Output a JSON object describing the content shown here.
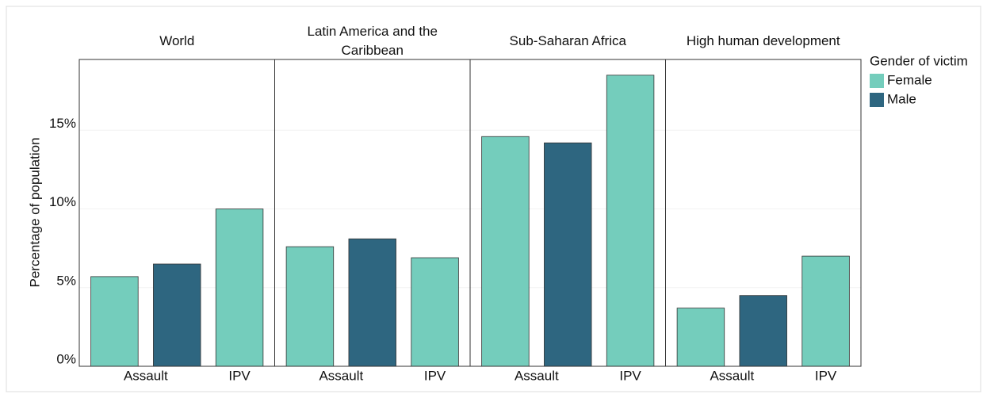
{
  "chart_data": {
    "type": "bar",
    "y_label": "Percentage of population",
    "legend_title": "Gender of victim",
    "series": [
      {
        "name": "Female",
        "color": "#74cdbc"
      },
      {
        "name": "Male",
        "color": "#2e6680"
      }
    ],
    "ylim": [
      0,
      19.5
    ],
    "yticks": [
      {
        "value": 0,
        "label": "0%"
      },
      {
        "value": 5,
        "label": "5%"
      },
      {
        "value": 10,
        "label": "10%"
      },
      {
        "value": 15,
        "label": "15%"
      }
    ],
    "grid": true,
    "panels": [
      {
        "title": "World",
        "categories": [
          "Assault",
          "IPV"
        ],
        "values": [
          [
            5.7,
            10.0
          ],
          [
            6.5,
            null
          ]
        ]
      },
      {
        "title": "Latin America and the Caribbean",
        "categories": [
          "Assault",
          "IPV"
        ],
        "values": [
          [
            7.6,
            6.9
          ],
          [
            8.1,
            null
          ]
        ]
      },
      {
        "title": "Sub-Saharan Africa",
        "categories": [
          "Assault",
          "IPV"
        ],
        "values": [
          [
            14.6,
            18.5
          ],
          [
            14.2,
            null
          ]
        ]
      },
      {
        "title": "High human development",
        "categories": [
          "Assault",
          "IPV"
        ],
        "values": [
          [
            3.7,
            7.0
          ],
          [
            4.5,
            null
          ]
        ]
      }
    ]
  }
}
